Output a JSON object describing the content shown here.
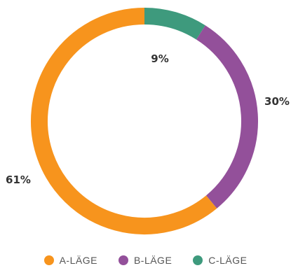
{
  "chart_data": {
    "type": "pie",
    "variant": "donut",
    "title": "",
    "categories": [
      "A-LÄGE",
      "B-LÄGE",
      "C-LÄGE"
    ],
    "values": [
      61,
      30,
      9
    ],
    "value_labels": [
      "61%",
      "30%",
      "9%"
    ],
    "colors": [
      "#F7941D",
      "#93509A",
      "#3E9A7D"
    ],
    "start": "top",
    "direction": "clockwise",
    "slice_order": [
      2,
      1,
      0
    ],
    "legend_position": "bottom"
  }
}
